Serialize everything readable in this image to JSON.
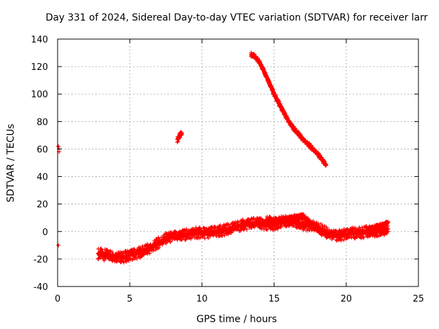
{
  "chart_data": {
    "type": "scatter",
    "title": "Day 331 of 2024, Sidereal Day-to-day VTEC variation (SDTVAR) for receiver larr",
    "xlabel": "GPS time / hours",
    "ylabel": "SDTVAR / TECUs",
    "xlim": [
      0,
      25
    ],
    "ylim": [
      -40,
      140
    ],
    "xticks": [
      0,
      5,
      10,
      15,
      20,
      25
    ],
    "yticks": [
      -40,
      -20,
      0,
      20,
      40,
      60,
      80,
      100,
      120,
      140
    ],
    "grid": true,
    "marker": "+",
    "color": "#ff0000",
    "series": [
      {
        "name": "isolated-points",
        "kind": "points",
        "x": [
          0.05,
          0.05,
          0.1,
          0.1
        ],
        "y": [
          -10,
          62,
          60,
          58
        ]
      },
      {
        "name": "short-segment-8h",
        "kind": "band",
        "x": [
          8.3,
          8.4,
          8.5,
          8.6
        ],
        "y": [
          67,
          68.5,
          70,
          71
        ],
        "spread": 2
      },
      {
        "name": "descending-track",
        "kind": "band",
        "x": [
          13.4,
          13.8,
          14.2,
          14.6,
          15.0,
          15.4,
          15.8,
          16.2,
          16.6,
          17.0,
          17.4,
          17.8,
          18.2,
          18.6
        ],
        "y": [
          129,
          126,
          119,
          110,
          100,
          92,
          84,
          77,
          72,
          67,
          63,
          59,
          54,
          48
        ],
        "spread": 1.5
      },
      {
        "name": "low-band",
        "kind": "band",
        "x": [
          2.8,
          3.2,
          3.6,
          4.0,
          4.5,
          5.0,
          5.5,
          6.0,
          6.5,
          7.0,
          7.5,
          8.0,
          8.5,
          9.0,
          9.5,
          10.0,
          10.5,
          11.0,
          11.5,
          12.0,
          12.5,
          13.0,
          13.5,
          14.0,
          14.5,
          15.0,
          15.5,
          16.0,
          16.5,
          17.0,
          17.5,
          18.0,
          18.5,
          19.0,
          19.5,
          20.0,
          20.5,
          21.0,
          21.5,
          22.0,
          22.5,
          22.9
        ],
        "y": [
          -16,
          -17,
          -17,
          -18,
          -19,
          -17,
          -16,
          -14,
          -12,
          -8,
          -5,
          -4,
          -3,
          -2,
          -1,
          -1,
          -1,
          0,
          1,
          2,
          4,
          5,
          6,
          6,
          5,
          5,
          7,
          8,
          7,
          5,
          4,
          3,
          0,
          -2,
          -3,
          -2,
          -1,
          -1,
          0,
          0,
          1,
          2
        ],
        "spread": 4
      },
      {
        "name": "low-band-upper-branch",
        "kind": "band",
        "x": [
          14.5,
          15.0,
          15.5,
          16.0,
          16.5,
          17.0,
          17.5,
          18.0,
          18.5
        ],
        "y": [
          9,
          8,
          8,
          9,
          10,
          11,
          6,
          2,
          -1
        ],
        "spread": 2
      },
      {
        "name": "low-band-rising-end",
        "kind": "band",
        "x": [
          21.5,
          22.0,
          22.5,
          22.9
        ],
        "y": [
          1,
          3,
          5,
          7
        ],
        "spread": 1.5
      }
    ]
  }
}
